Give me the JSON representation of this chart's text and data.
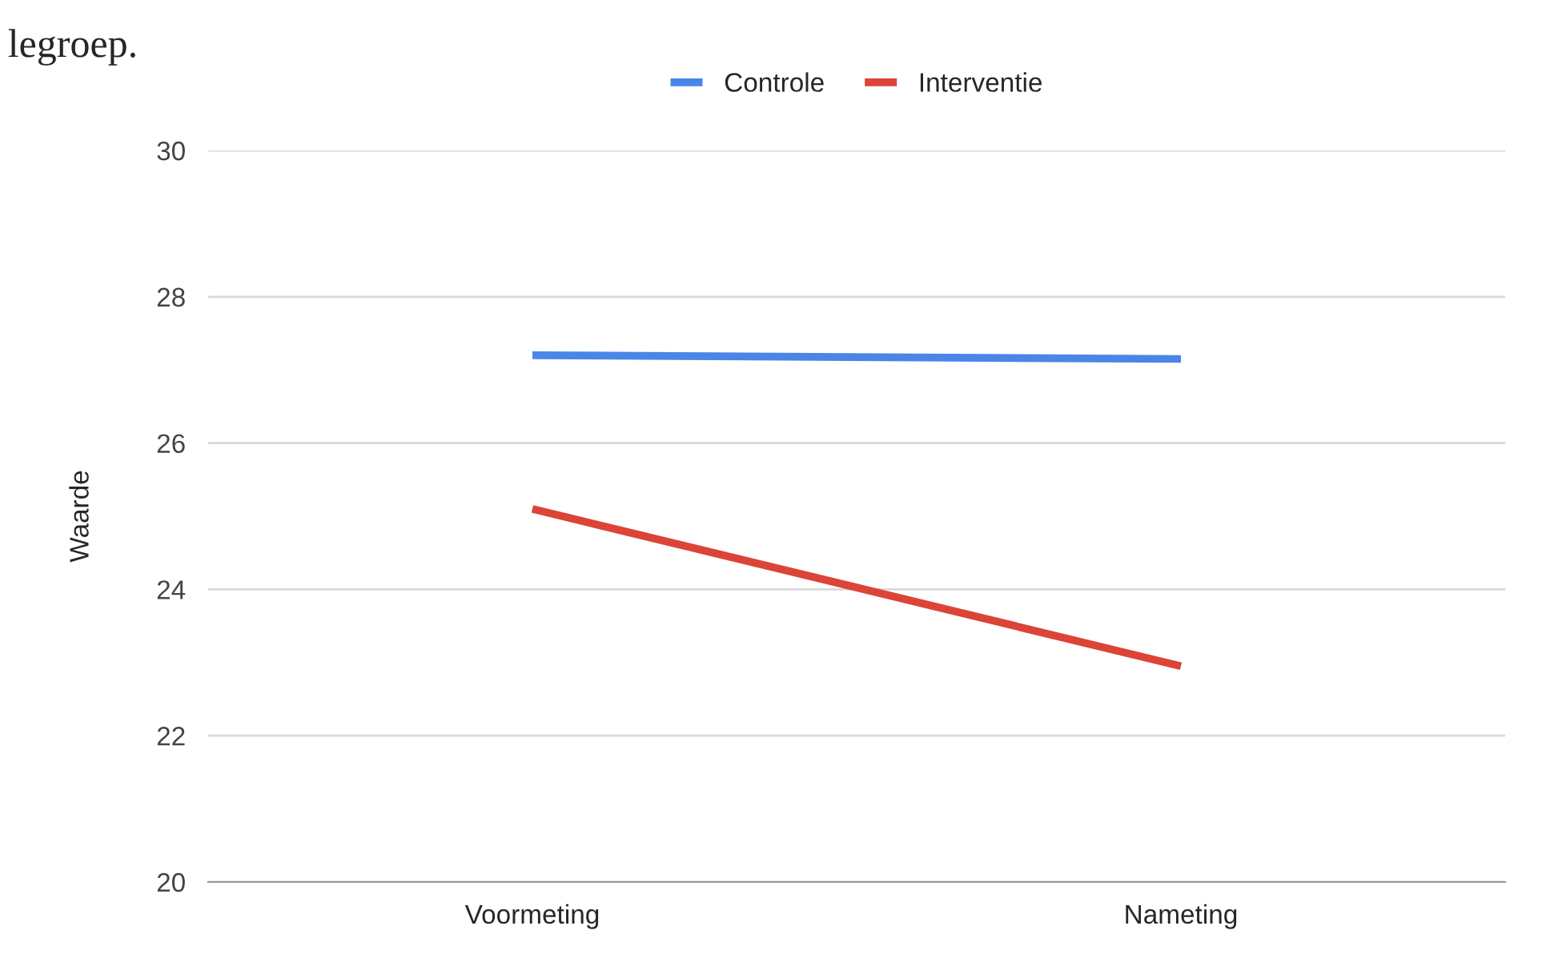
{
  "chart_data": {
    "type": "line",
    "ylabel": "Waarde",
    "categories": [
      "Voormeting",
      "Nameting"
    ],
    "series": [
      {
        "name": "Controle",
        "color": "#4a86e8",
        "values": [
          27.2,
          27.15
        ]
      },
      {
        "name": "Interventie",
        "color": "#db4437",
        "values": [
          25.1,
          22.95
        ]
      }
    ],
    "ylim": [
      20,
      30
    ],
    "yticks": [
      20,
      22,
      24,
      26,
      28,
      30
    ],
    "grid": "y",
    "legend": "top",
    "marker": "none",
    "line_style": "solid",
    "annotations": [
      "legroep."
    ]
  }
}
